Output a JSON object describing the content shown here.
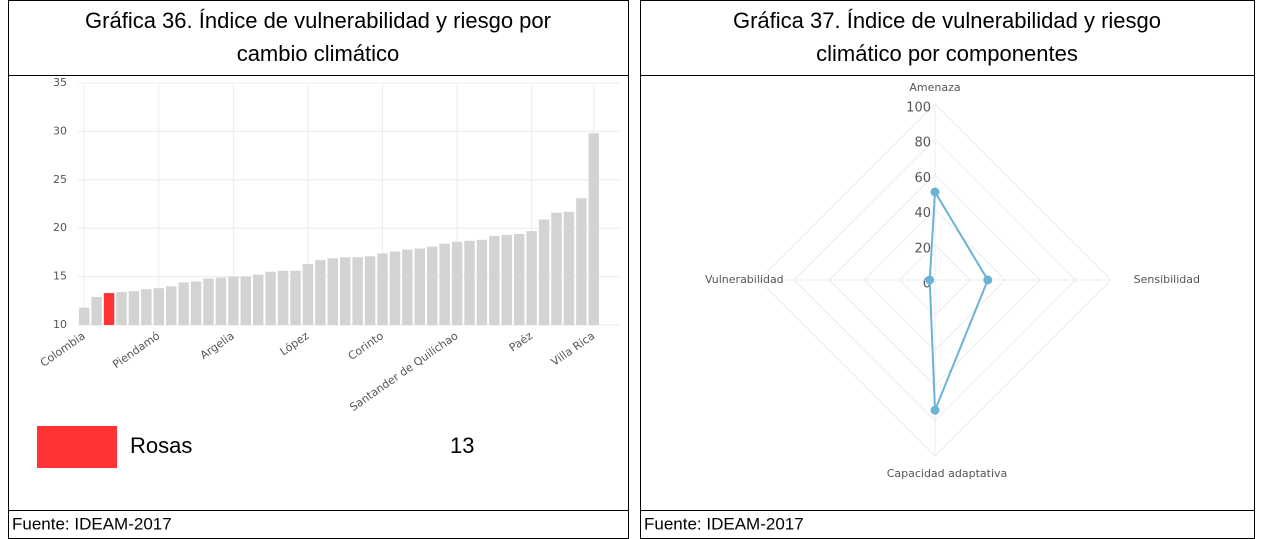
{
  "headers": [
    [
      "Gráfica 36. Índice de vulnerabilidad y riesgo por",
      "cambio climático"
    ],
    [
      "Gráfica 37. Índice de vulnerabilidad y riesgo",
      "climático por componentes"
    ]
  ],
  "sources": [
    "Fuente: IDEAM-2017",
    "Fuente: IDEAM-2017"
  ],
  "chart_data": [
    {
      "type": "bar",
      "categories": [
        "Colombia",
        null,
        null,
        null,
        null,
        null,
        "Piendamó",
        null,
        null,
        null,
        null,
        null,
        "Argelia",
        null,
        null,
        null,
        null,
        null,
        "López",
        null,
        null,
        null,
        null,
        null,
        "Corinto",
        null,
        null,
        null,
        null,
        null,
        "Santander de Quilichao",
        null,
        null,
        null,
        null,
        null,
        "Paéz",
        null,
        null,
        null,
        null,
        "Villa Rica"
      ],
      "values": [
        11.8,
        12.9,
        13.3,
        13.4,
        13.5,
        13.7,
        13.8,
        14.0,
        14.4,
        14.5,
        14.8,
        14.9,
        15.0,
        15.0,
        15.2,
        15.5,
        15.6,
        15.6,
        16.3,
        16.7,
        16.9,
        17.0,
        17.0,
        17.1,
        17.4,
        17.6,
        17.8,
        17.9,
        18.1,
        18.4,
        18.6,
        18.7,
        18.8,
        19.2,
        19.3,
        19.4,
        19.7,
        20.9,
        21.6,
        21.7,
        23.1,
        29.8
      ],
      "color": "#d3d3d3",
      "highlight": {
        "index": 2,
        "name": "Rosas",
        "value": 13,
        "color": "#ff3333"
      },
      "ylim": [
        10,
        35
      ],
      "yticks": [
        10,
        15,
        20,
        25,
        30,
        35
      ],
      "grid": true
    },
    {
      "type": "radar",
      "categories": [
        "Amenaza",
        "Sensibilidad",
        "Capacidad adaptativa",
        "Vulnerabilidad"
      ],
      "values": [
        50,
        30,
        74,
        3
      ],
      "color": "#6bb3d6",
      "rlim": [
        0,
        100
      ],
      "rticks": [
        0,
        20,
        40,
        60,
        80,
        100
      ],
      "grid": true
    }
  ]
}
